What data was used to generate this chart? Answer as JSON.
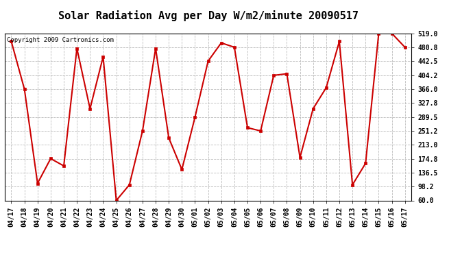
{
  "title": "Solar Radiation Avg per Day W/m2/minute 20090517",
  "copyright": "Copyright 2009 Cartronics.com",
  "labels": [
    "04/17",
    "04/18",
    "04/19",
    "04/20",
    "04/21",
    "04/22",
    "04/23",
    "04/24",
    "04/25",
    "04/26",
    "04/27",
    "04/28",
    "04/29",
    "04/30",
    "05/01",
    "05/02",
    "05/03",
    "05/04",
    "05/05",
    "05/06",
    "05/07",
    "05/08",
    "05/09",
    "05/10",
    "05/11",
    "05/12",
    "05/13",
    "05/14",
    "05/15",
    "05/16",
    "05/17"
  ],
  "values": [
    497,
    366,
    107,
    175,
    155,
    478,
    312,
    455,
    60,
    103,
    251,
    478,
    232,
    145,
    289,
    443,
    493,
    481,
    260,
    251,
    404,
    408,
    178,
    312,
    370,
    497,
    103,
    162,
    519,
    519,
    481
  ],
  "line_color": "#cc0000",
  "marker": "s",
  "markersize": 3,
  "linewidth": 1.5,
  "ylim": [
    60,
    519
  ],
  "yticks": [
    60.0,
    98.2,
    136.5,
    174.8,
    213.0,
    251.2,
    289.5,
    327.8,
    366.0,
    404.2,
    442.5,
    480.8,
    519.0
  ],
  "ytick_labels": [
    "60.0",
    "98.2",
    "136.5",
    "174.8",
    "213.0",
    "251.2",
    "289.5",
    "327.8",
    "366.0",
    "404.2",
    "442.5",
    "480.8",
    "519.0"
  ],
  "background_color": "#ffffff",
  "grid_color": "#bbbbbb",
  "title_fontsize": 11,
  "tick_fontsize": 7,
  "copyright_fontsize": 6.5
}
